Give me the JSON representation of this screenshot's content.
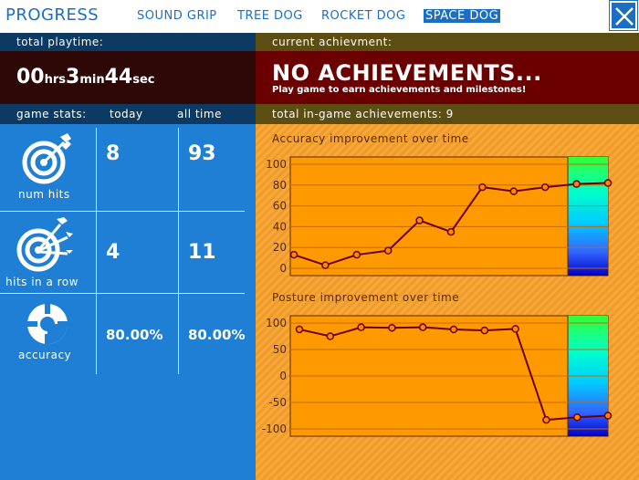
{
  "header": {
    "title": "PROGRESS",
    "tabs": [
      {
        "label": "SOUND GRIP",
        "active": false
      },
      {
        "label": "TREE DOG",
        "active": false
      },
      {
        "label": "ROCKET DOG",
        "active": false
      },
      {
        "label": "SPACE DOG",
        "active": true
      }
    ],
    "close_icon": "close-x-icon"
  },
  "playtime": {
    "label": "total playtime:",
    "hours": "00",
    "hours_unit": "hrs",
    "minutes": "3",
    "minutes_unit": "min",
    "seconds": "44",
    "seconds_unit": "sec"
  },
  "achievement": {
    "label": "current achievment:",
    "title": "NO ACHIEVEMENTS...",
    "subtitle": "Play game to earn achievements and milestones!",
    "total_label": "total in-game achievements: 9"
  },
  "stats": {
    "header": {
      "label": "game stats:",
      "today": "today",
      "all_time": "all time"
    },
    "rows": [
      {
        "label": "num hits",
        "icon": "target-dart-icon",
        "today": "8",
        "all_time": "93"
      },
      {
        "label": "hits in a row",
        "icon": "target-multi-dart-icon",
        "today": "4",
        "all_time": "11"
      },
      {
        "label": "accuracy",
        "icon": "accuracy-icon",
        "today": "80.00%",
        "all_time": "80.00%"
      }
    ]
  },
  "colors": {
    "brand_blue": "#1a6fc4",
    "stats_blue": "#1f7fd4",
    "navy": "#0d3a63",
    "olive": "#5c4d12",
    "dark_red": "#6b0000",
    "chart_orange": "#ff9900",
    "line": "#6b0000"
  },
  "chart_data": [
    {
      "type": "line",
      "title": "Accuracy improvement over time",
      "x": [
        1,
        2,
        3,
        4,
        5,
        6,
        7,
        8,
        9,
        10,
        11
      ],
      "y": [
        13,
        3,
        13,
        17,
        46,
        35,
        78,
        74,
        78,
        81,
        82
      ],
      "ylim": [
        0,
        100
      ],
      "yticks": [
        0,
        20,
        40,
        60,
        80,
        100
      ],
      "grid": true,
      "legend": "none",
      "gradient_band": "green-to-blue"
    },
    {
      "type": "line",
      "title": "Posture improvement over time",
      "x": [
        1,
        2,
        3,
        4,
        5,
        6,
        7,
        8,
        9,
        10,
        11
      ],
      "y": [
        88,
        75,
        92,
        91,
        92,
        88,
        86,
        89,
        -83,
        -78,
        -75
      ],
      "ylim": [
        -100,
        100
      ],
      "yticks": [
        -100,
        -50,
        0,
        50,
        100
      ],
      "grid": true,
      "legend": "none",
      "gradient_band": "green-to-blue"
    }
  ]
}
